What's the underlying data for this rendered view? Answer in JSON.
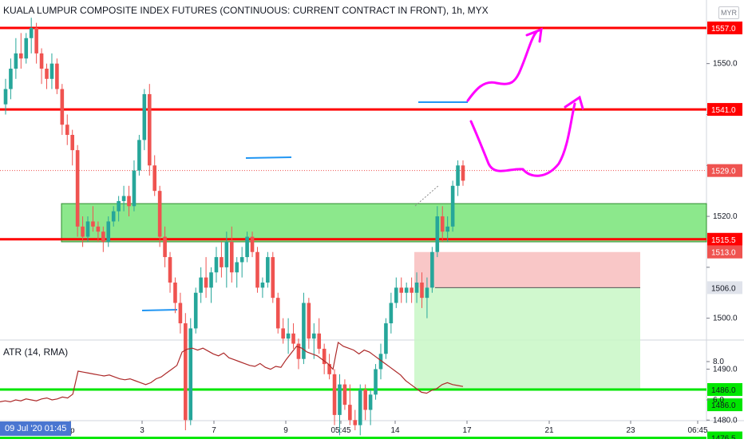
{
  "header": {
    "symbol_title": "KUALA LUMPUR COMPOSITE INDEX FUTURES (CONTINUOUS: CURRENT CONTRACT IN FRONT), 1h, MYX",
    "currency": "MYR"
  },
  "atr": {
    "label": "ATR (14, RMA)",
    "ticks": [
      "8.0",
      "6.0"
    ],
    "ylim": [
      5.2,
      9.3
    ]
  },
  "date_badge": "09 Jul '20   01:45",
  "colors": {
    "up": "#26a69a",
    "down": "#ef5350",
    "resistance_line": "#ff0000",
    "support_line": "#00e600",
    "zone_fill": "#66e066",
    "annotation": "#ff00ff",
    "atr_line": "#ad2a2a",
    "short_stop_fill": "#f7b9b9",
    "short_target_fill": "#c8f7c5",
    "level_marker": "#2196f3"
  },
  "chart_data": {
    "type": "candlestick",
    "ylim": [
      1473,
      1561
    ],
    "y_ticks": [
      1550,
      1540,
      1530,
      1520,
      1510,
      1500,
      1490,
      1480
    ],
    "y_tick_labels": [
      "1550.0",
      "",
      "",
      "1520.0",
      "",
      "1500.0",
      "1490.0",
      "1480.0"
    ],
    "x_tick_labels": [
      "ep",
      "3",
      "7",
      "9",
      "05:45",
      "14",
      "17",
      "21",
      "23",
      "06:45"
    ],
    "candles": [
      [
        1542,
        1547,
        1540,
        1545
      ],
      [
        1545,
        1551,
        1543,
        1549
      ],
      [
        1549,
        1555,
        1547,
        1552
      ],
      [
        1552,
        1556,
        1549,
        1551
      ],
      [
        1551,
        1556,
        1550,
        1555
      ],
      [
        1555,
        1559,
        1552,
        1557
      ],
      [
        1557,
        1558,
        1550,
        1552
      ],
      [
        1552,
        1553,
        1546,
        1549
      ],
      [
        1549,
        1550,
        1545,
        1547
      ],
      [
        1547,
        1552,
        1545,
        1550
      ],
      [
        1550,
        1551,
        1544,
        1545
      ],
      [
        1545,
        1546,
        1536,
        1538
      ],
      [
        1538,
        1540,
        1534,
        1536
      ],
      [
        1536,
        1537,
        1530,
        1533
      ],
      [
        1533,
        1534,
        1516,
        1518
      ],
      [
        1518,
        1520,
        1514,
        1516
      ],
      [
        1516,
        1520,
        1515,
        1519
      ],
      [
        1519,
        1522,
        1517,
        1518
      ],
      [
        1518,
        1519,
        1515,
        1517
      ],
      [
        1517,
        1518,
        1513,
        1515
      ],
      [
        1515,
        1520,
        1514,
        1519
      ],
      [
        1519,
        1522,
        1518,
        1521
      ],
      [
        1521,
        1524,
        1519,
        1523
      ],
      [
        1523,
        1526,
        1521,
        1524
      ],
      [
        1524,
        1526,
        1520,
        1522
      ],
      [
        1522,
        1531,
        1521,
        1529
      ],
      [
        1529,
        1536,
        1528,
        1535
      ],
      [
        1535,
        1545,
        1533,
        1544
      ],
      [
        1544,
        1546,
        1528,
        1530
      ],
      [
        1530,
        1532,
        1524,
        1525
      ],
      [
        1525,
        1526,
        1514,
        1516
      ],
      [
        1516,
        1518,
        1510,
        1512
      ],
      [
        1512,
        1513,
        1505,
        1507
      ],
      [
        1507,
        1508,
        1501,
        1503
      ],
      [
        1503,
        1505,
        1497,
        1499
      ],
      [
        1499,
        1501,
        1478,
        1480
      ],
      [
        1480,
        1500,
        1479,
        1498
      ],
      [
        1498,
        1506,
        1497,
        1505
      ],
      [
        1505,
        1510,
        1503,
        1508
      ],
      [
        1508,
        1512,
        1504,
        1506
      ],
      [
        1506,
        1510,
        1503,
        1509
      ],
      [
        1509,
        1514,
        1507,
        1512
      ],
      [
        1512,
        1515,
        1508,
        1510
      ],
      [
        1510,
        1517,
        1506,
        1515
      ],
      [
        1515,
        1518,
        1507,
        1509
      ],
      [
        1509,
        1512,
        1506,
        1511
      ],
      [
        1511,
        1514,
        1508,
        1512
      ],
      [
        1512,
        1517,
        1511,
        1516
      ],
      [
        1516,
        1517,
        1512,
        1513
      ],
      [
        1513,
        1514,
        1505,
        1506
      ],
      [
        1506,
        1508,
        1504,
        1507
      ],
      [
        1507,
        1513,
        1506,
        1512
      ],
      [
        1512,
        1513,
        1503,
        1504
      ],
      [
        1504,
        1505,
        1497,
        1498
      ],
      [
        1498,
        1500,
        1495,
        1496
      ],
      [
        1496,
        1500,
        1493,
        1497
      ],
      [
        1497,
        1499,
        1494,
        1495
      ],
      [
        1495,
        1496,
        1490,
        1492
      ],
      [
        1492,
        1505,
        1491,
        1503
      ],
      [
        1503,
        1504,
        1494,
        1496
      ],
      [
        1496,
        1499,
        1492,
        1497
      ],
      [
        1497,
        1500,
        1493,
        1494
      ],
      [
        1494,
        1495,
        1489,
        1491
      ],
      [
        1491,
        1493,
        1488,
        1489
      ],
      [
        1489,
        1490,
        1479,
        1481
      ],
      [
        1481,
        1489,
        1477,
        1487
      ],
      [
        1487,
        1488,
        1482,
        1483
      ],
      [
        1483,
        1487,
        1479,
        1480
      ],
      [
        1480,
        1482,
        1478,
        1479
      ],
      [
        1479,
        1487,
        1477,
        1486
      ],
      [
        1486,
        1487,
        1480,
        1482
      ],
      [
        1482,
        1486,
        1479,
        1485
      ],
      [
        1485,
        1491,
        1484,
        1490
      ],
      [
        1490,
        1495,
        1488,
        1493
      ],
      [
        1493,
        1500,
        1492,
        1499
      ],
      [
        1499,
        1505,
        1497,
        1503
      ],
      [
        1503,
        1508,
        1502,
        1506
      ],
      [
        1506,
        1508,
        1503,
        1505
      ],
      [
        1505,
        1507,
        1503,
        1506
      ],
      [
        1506,
        1508,
        1503,
        1505
      ],
      [
        1505,
        1509,
        1503,
        1507
      ],
      [
        1507,
        1509,
        1502,
        1504
      ],
      [
        1504,
        1508,
        1500,
        1506
      ],
      [
        1506,
        1514,
        1505,
        1513
      ],
      [
        1513,
        1522,
        1512,
        1520
      ],
      [
        1520,
        1522,
        1515,
        1517
      ],
      [
        1517,
        1520,
        1515,
        1518
      ],
      [
        1518,
        1527,
        1517,
        1526
      ],
      [
        1526,
        1531,
        1524,
        1530
      ],
      [
        1530,
        1531,
        1526,
        1527
      ]
    ],
    "atr_values": [
      5.9,
      5.95,
      5.9,
      6.0,
      5.95,
      6.05,
      6.0,
      5.95,
      6.05,
      6.1,
      6.0,
      6.05,
      6.15,
      6.1,
      6.3,
      7.5,
      7.45,
      7.4,
      7.35,
      7.3,
      7.25,
      7.3,
      7.2,
      7.1,
      7.05,
      7.1,
      7.0,
      6.9,
      6.8,
      6.9,
      7.1,
      7.2,
      7.4,
      7.6,
      7.8,
      8.5,
      8.65,
      8.7,
      8.6,
      8.7,
      8.55,
      8.4,
      8.3,
      8.45,
      8.2,
      8.1,
      8.0,
      7.9,
      7.8,
      7.75,
      7.9,
      7.7,
      7.6,
      7.75,
      7.7,
      8.1,
      8.45,
      8.8,
      8.7,
      8.5,
      8.4,
      8.3,
      8.1,
      7.9,
      7.6,
      9.0,
      8.8,
      8.7,
      8.6,
      8.4,
      8.6,
      8.5,
      8.3,
      8.1,
      7.9,
      7.7,
      7.5,
      7.3,
      7.0,
      6.8,
      6.6,
      6.4,
      6.35,
      6.5,
      6.6,
      6.8,
      6.9,
      6.8,
      6.75,
      6.7
    ],
    "horizontal_levels": [
      {
        "label": "1557.0",
        "value": 1557,
        "color_key": "resistance_line"
      },
      {
        "label": "1541.0",
        "value": 1541,
        "color_key": "resistance_line"
      },
      {
        "label": "1515.5",
        "value": 1515.5,
        "color_key": "resistance_line"
      },
      {
        "label": "1486.0",
        "value": 1486,
        "color_key": "support_line"
      },
      {
        "label": "1476.5",
        "value": 1476.5,
        "color_key": "support_line"
      }
    ],
    "price_labels": [
      {
        "label": "1529.0",
        "value": 1529,
        "color_key": "down"
      },
      {
        "label": "1513.0",
        "value": 1513,
        "color_key": "down"
      },
      {
        "label": "1506.0",
        "value": 1506,
        "color_key": "neutral"
      },
      {
        "label": "1486.0",
        "value": 1483,
        "color_key": "support_line"
      }
    ],
    "zone": {
      "low": 1515,
      "high": 1522.5
    },
    "position": {
      "entry": 1506,
      "stop": 1513,
      "target": 1486
    }
  }
}
